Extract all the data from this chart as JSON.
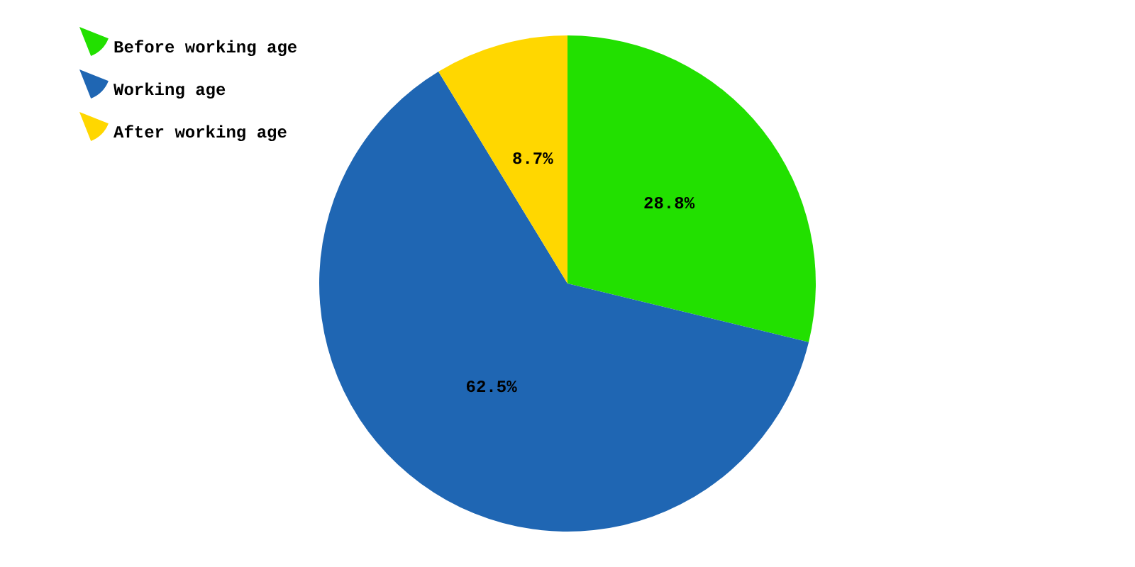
{
  "chart_data": {
    "type": "pie",
    "categories": [
      "Before working age",
      "Working age",
      "After working age"
    ],
    "values": [
      28.8,
      62.5,
      8.7
    ],
    "colors": [
      "#22e000",
      "#1f66b3",
      "#ffd700"
    ],
    "value_labels": [
      "28.8%",
      "62.5%",
      "8.7%"
    ],
    "legend": "top left"
  }
}
